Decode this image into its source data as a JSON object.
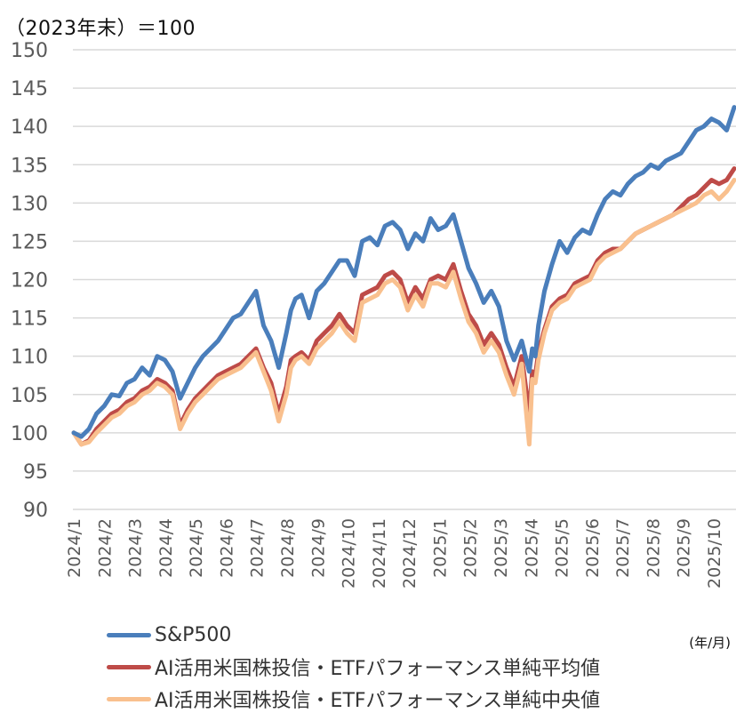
{
  "header": {
    "unit_title": "（2023年末）＝100"
  },
  "axis_unit": "(年/月)",
  "legend": [
    {
      "label": "S&P500",
      "color": "#4A7EBB"
    },
    {
      "label": "AI活用米国株投信・ETFパフォーマンス単純平均値",
      "color": "#BE4B48"
    },
    {
      "label": "AI活用米国株投信・ETFパフォーマンス単純中央値",
      "color": "#F9C08E"
    }
  ],
  "chart_data": {
    "type": "line",
    "title": "",
    "subtitle": "（2023年末）＝100",
    "xlabel": "(年/月)",
    "ylabel": "",
    "ylim": [
      90,
      150
    ],
    "yticks": [
      90,
      95,
      100,
      105,
      110,
      115,
      120,
      125,
      130,
      135,
      140,
      145,
      150
    ],
    "grid": true,
    "legend_position": "bottom",
    "categories": [
      "2024/1",
      "2024/2",
      "2024/3",
      "2024/4",
      "2024/5",
      "2024/6",
      "2024/7",
      "2024/8",
      "2024/9",
      "2024/10",
      "2024/11",
      "2024/12",
      "2025/1",
      "2025/2",
      "2025/3",
      "2025/4",
      "2025/5",
      "2025/6",
      "2025/7",
      "2025/8",
      "2025/9",
      "2025/10"
    ],
    "x": [
      0,
      0.25,
      0.5,
      0.75,
      1,
      1.25,
      1.5,
      1.75,
      2,
      2.25,
      2.5,
      2.75,
      3,
      3.25,
      3.5,
      3.75,
      4,
      4.25,
      4.5,
      4.75,
      5,
      5.25,
      5.5,
      5.75,
      6,
      6.25,
      6.5,
      6.75,
      7,
      7.15,
      7.3,
      7.5,
      7.75,
      8,
      8.25,
      8.5,
      8.75,
      9,
      9.25,
      9.5,
      9.75,
      10,
      10.25,
      10.5,
      10.75,
      11,
      11.25,
      11.5,
      11.75,
      12,
      12.25,
      12.5,
      12.75,
      13,
      13.25,
      13.5,
      13.75,
      14,
      14.25,
      14.5,
      14.75,
      15,
      15.1,
      15.2,
      15.3,
      15.5,
      15.75,
      16,
      16.25,
      16.5,
      16.75,
      17,
      17.25,
      17.5,
      17.75,
      18,
      18.25,
      18.5,
      18.75,
      19,
      19.25,
      19.5,
      19.75,
      20,
      20.25,
      20.5,
      20.75,
      21,
      21.25,
      21.5,
      21.75
    ],
    "series": [
      {
        "name": "S&P500",
        "color": "#4A7EBB",
        "values": [
          100,
          99.5,
          100.5,
          102.5,
          103.5,
          105.0,
          104.8,
          106.5,
          107.0,
          108.5,
          107.5,
          110.0,
          109.5,
          108.0,
          104.5,
          106.5,
          108.5,
          110.0,
          111.0,
          112.0,
          113.5,
          115.0,
          115.5,
          117.0,
          118.5,
          114.0,
          112.0,
          108.5,
          113.0,
          116.0,
          117.5,
          118.0,
          115.0,
          118.5,
          119.5,
          121.0,
          122.5,
          122.5,
          120.5,
          125.0,
          125.5,
          124.5,
          127.0,
          127.5,
          126.5,
          124.0,
          126.0,
          125.0,
          128.0,
          126.5,
          127.0,
          128.5,
          125.0,
          121.5,
          119.5,
          117.0,
          118.5,
          116.5,
          112.0,
          109.5,
          112.0,
          108.0,
          111.0,
          110.0,
          114.0,
          118.5,
          122.0,
          125.0,
          123.5,
          125.5,
          126.5,
          126.0,
          128.5,
          130.5,
          131.5,
          131.0,
          132.5,
          133.5,
          134.0,
          135.0,
          134.5,
          135.5,
          136.0,
          136.5,
          138.0,
          139.5,
          140.0,
          141.0,
          140.5,
          139.5,
          142.5
        ]
      },
      {
        "name": "AI活用米国株投信・ETFパフォーマンス単純平均値",
        "color": "#BE4B48",
        "values": [
          100,
          98.5,
          99.0,
          100.5,
          101.5,
          102.5,
          103.0,
          104.0,
          104.5,
          105.5,
          106.0,
          107.0,
          106.5,
          105.5,
          101.0,
          103.0,
          104.5,
          105.5,
          106.5,
          107.5,
          108.0,
          108.5,
          109.0,
          110.0,
          111.0,
          108.5,
          106.5,
          102.5,
          106.0,
          109.5,
          110.0,
          110.5,
          109.5,
          112.0,
          113.0,
          114.0,
          115.5,
          114.0,
          113.0,
          118.0,
          118.5,
          119.0,
          120.5,
          121.0,
          120.0,
          117.0,
          119.0,
          117.5,
          120.0,
          120.5,
          120.0,
          122.0,
          118.5,
          115.5,
          114.0,
          111.5,
          113.0,
          111.5,
          108.5,
          106.0,
          110.0,
          102.5,
          108.0,
          107.5,
          110.5,
          113.5,
          116.5,
          117.5,
          118.0,
          119.5,
          120.0,
          120.5,
          122.5,
          123.5,
          124.0,
          124.0,
          125.0,
          126.0,
          126.5,
          127.0,
          127.5,
          128.0,
          128.5,
          129.5,
          130.5,
          131.0,
          132.0,
          133.0,
          132.5,
          133.0,
          134.5
        ]
      },
      {
        "name": "AI活用米国株投信・ETFパフォーマンス単純中央値",
        "color": "#F9C08E",
        "values": [
          100,
          98.5,
          98.8,
          100.0,
          101.0,
          102.0,
          102.5,
          103.5,
          104.0,
          105.0,
          105.5,
          106.5,
          106.0,
          105.0,
          100.5,
          102.5,
          104.0,
          105.0,
          106.0,
          107.0,
          107.5,
          108.0,
          108.5,
          109.5,
          110.5,
          108.0,
          105.5,
          101.5,
          105.0,
          108.5,
          109.5,
          110.0,
          109.0,
          111.0,
          112.0,
          113.0,
          114.5,
          113.0,
          112.0,
          117.0,
          117.5,
          118.0,
          119.5,
          120.0,
          119.0,
          116.0,
          118.0,
          116.5,
          119.5,
          119.5,
          119.0,
          121.0,
          117.5,
          114.5,
          113.0,
          110.5,
          112.0,
          110.5,
          107.5,
          105.0,
          109.0,
          98.5,
          107.0,
          106.5,
          109.5,
          113.0,
          116.0,
          117.0,
          117.5,
          119.0,
          119.5,
          120.0,
          122.0,
          123.0,
          123.5,
          124.0,
          125.0,
          126.0,
          126.5,
          127.0,
          127.5,
          128.0,
          128.5,
          129.0,
          129.5,
          130.0,
          131.0,
          131.5,
          130.5,
          131.5,
          133.0
        ]
      }
    ]
  }
}
